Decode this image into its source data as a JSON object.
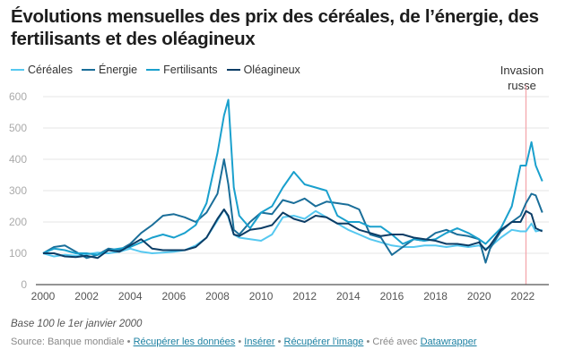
{
  "title": "Évolutions mensuelles des prix des céréales, de l’énergie, des fertilisants et des oléagineux",
  "annotation": {
    "line1": "Invasion",
    "line2": "russe",
    "date": 2022.15,
    "color": "#f4a7ad"
  },
  "note": "Base 100 le 1er janvier 2000",
  "footer": {
    "source": "Source: Banque mondiale",
    "sep": " • ",
    "link_data": "Récupérer les données",
    "link_embed": "Insérer",
    "link_image": "Récupérer l'image",
    "created": "Créé avec",
    "link_dw": "Datawrapper"
  },
  "chart_data": {
    "type": "line",
    "title": "Évolutions mensuelles des prix des céréales, de l’énergie, des fertilisants et des oléagineux",
    "xlabel": "",
    "ylabel": "",
    "xlim": [
      2000,
      2023.2
    ],
    "ylim": [
      0,
      600
    ],
    "yticks": [
      0,
      100,
      200,
      300,
      400,
      500,
      600
    ],
    "xticks": [
      2000,
      2002,
      2004,
      2006,
      2008,
      2010,
      2012,
      2014,
      2016,
      2018,
      2020,
      2022
    ],
    "grid": true,
    "legend": "top-left",
    "x": [
      2000,
      2000.5,
      2001,
      2001.5,
      2002,
      2002.5,
      2003,
      2003.5,
      2004,
      2004.5,
      2005,
      2005.5,
      2006,
      2006.5,
      2007,
      2007.5,
      2008,
      2008.3,
      2008.5,
      2008.75,
      2009,
      2009.5,
      2010,
      2010.5,
      2011,
      2011.5,
      2012,
      2012.5,
      2013,
      2013.5,
      2014,
      2014.5,
      2015,
      2015.5,
      2016,
      2016.5,
      2017,
      2017.5,
      2018,
      2018.5,
      2019,
      2019.5,
      2020,
      2020.3,
      2020.5,
      2021,
      2021.5,
      2021.9,
      2022.15,
      2022.4,
      2022.6,
      2022.9
    ],
    "series": [
      {
        "name": "Céréales",
        "color": "#56c8f0",
        "values": [
          100,
          90,
          95,
          92,
          97,
          102,
          100,
          105,
          115,
          105,
          100,
          102,
          105,
          110,
          125,
          150,
          205,
          240,
          215,
          160,
          150,
          145,
          140,
          160,
          215,
          220,
          210,
          235,
          215,
          195,
          175,
          160,
          145,
          135,
          125,
          120,
          120,
          125,
          125,
          120,
          125,
          120,
          125,
          115,
          120,
          150,
          175,
          170,
          170,
          195,
          170,
          175
        ]
      },
      {
        "name": "Énergie",
        "color": "#1a6e99",
        "values": [
          100,
          120,
          125,
          105,
          85,
          95,
          115,
          110,
          130,
          165,
          190,
          220,
          225,
          215,
          200,
          230,
          290,
          400,
          320,
          175,
          160,
          200,
          230,
          225,
          270,
          260,
          275,
          250,
          265,
          260,
          255,
          240,
          160,
          150,
          95,
          120,
          145,
          140,
          165,
          175,
          160,
          155,
          145,
          70,
          115,
          170,
          200,
          220,
          260,
          290,
          285,
          230
        ]
      },
      {
        "name": "Fertilisants",
        "color": "#1aa0cd",
        "values": [
          100,
          115,
          110,
          100,
          100,
          95,
          110,
          115,
          120,
          135,
          150,
          160,
          150,
          165,
          190,
          260,
          420,
          540,
          590,
          310,
          220,
          180,
          230,
          250,
          310,
          360,
          320,
          310,
          300,
          220,
          200,
          200,
          185,
          185,
          160,
          130,
          145,
          140,
          145,
          165,
          180,
          165,
          145,
          130,
          145,
          180,
          250,
          380,
          380,
          455,
          380,
          330
        ]
      },
      {
        "name": "Oléagineux",
        "color": "#0c3d66",
        "values": [
          100,
          100,
          90,
          88,
          92,
          85,
          110,
          105,
          125,
          145,
          115,
          110,
          110,
          110,
          120,
          150,
          210,
          240,
          220,
          160,
          155,
          175,
          180,
          190,
          230,
          210,
          200,
          220,
          215,
          195,
          195,
          175,
          165,
          155,
          160,
          160,
          150,
          145,
          140,
          130,
          130,
          125,
          135,
          110,
          125,
          175,
          200,
          200,
          235,
          225,
          180,
          170
        ]
      }
    ]
  }
}
